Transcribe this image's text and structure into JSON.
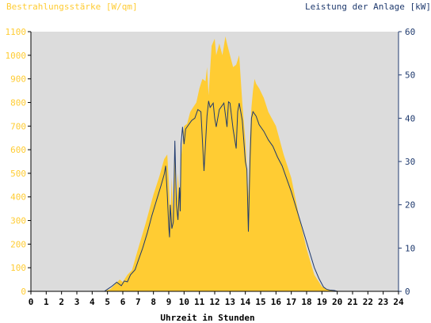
{
  "chart_data": {
    "type": "area",
    "left_axis_title": "Bestrahlungsstärke [W/qm]",
    "right_axis_title": "Leistung der Anlage [kW]",
    "xlabel": "Uhrzeit in Stunden",
    "xlim": [
      0,
      24
    ],
    "ylim_left": [
      0,
      1100
    ],
    "ylim_right": [
      0,
      60
    ],
    "x_ticks": [
      "0",
      "1",
      "2",
      "3",
      "4",
      "5",
      "6",
      "7",
      "8",
      "9",
      "10",
      "11",
      "12",
      "13",
      "14",
      "15",
      "16",
      "17",
      "18",
      "19",
      "20",
      "21",
      "22",
      "23",
      "24"
    ],
    "y_ticks_left": [
      "0",
      "100",
      "200",
      "300",
      "400",
      "500",
      "600",
      "700",
      "800",
      "900",
      "1000",
      "1100"
    ],
    "y_ticks_right": [
      "0",
      "10",
      "20",
      "30",
      "40",
      "50",
      "60"
    ],
    "grid": false,
    "colors": {
      "plot_background": "#dcdcdc",
      "irradiance_fill": "#ffcc33",
      "power_line": "#1f3a6e",
      "left_axis_text": "#ffcc33",
      "right_axis_text": "#1f3a6e",
      "x_axis_text": "#000000"
    },
    "series": [
      {
        "axis": "left",
        "style": "area",
        "x": [
          0,
          4.8,
          5.2,
          5.5,
          5.8,
          6.0,
          6.3,
          6.6,
          7.0,
          7.5,
          8.0,
          8.4,
          8.7,
          8.9,
          9.0,
          9.1,
          9.2,
          9.3,
          9.4,
          9.5,
          9.6,
          9.7,
          9.8,
          10.0,
          10.2,
          10.4,
          10.6,
          10.8,
          11.0,
          11.2,
          11.4,
          11.5,
          11.6,
          11.8,
          12.0,
          12.1,
          12.3,
          12.5,
          12.7,
          12.8,
          13.0,
          13.2,
          13.4,
          13.6,
          13.8,
          14.0,
          14.2,
          14.3,
          14.4,
          14.5,
          14.6,
          14.7,
          14.9,
          15.2,
          15.5,
          16.0,
          16.5,
          17.0,
          17.5,
          18.0,
          18.5,
          19.0,
          19.3,
          19.6,
          20.0,
          20.3,
          24
        ],
        "values": [
          0,
          0,
          10,
          30,
          50,
          40,
          70,
          90,
          180,
          290,
          410,
          490,
          560,
          580,
          470,
          320,
          480,
          300,
          590,
          360,
          500,
          380,
          560,
          700,
          710,
          760,
          780,
          800,
          860,
          900,
          890,
          950,
          830,
          1040,
          1070,
          1000,
          1050,
          1000,
          1080,
          1050,
          1000,
          950,
          960,
          1000,
          800,
          640,
          400,
          650,
          780,
          850,
          900,
          880,
          860,
          820,
          760,
          700,
          580,
          480,
          320,
          180,
          70,
          20,
          10,
          5,
          2,
          0,
          0
        ]
      },
      {
        "axis": "right",
        "style": "line",
        "x": [
          0,
          4.8,
          5.0,
          5.3,
          5.6,
          5.9,
          6.1,
          6.3,
          6.5,
          6.8,
          7.0,
          7.3,
          7.6,
          7.9,
          8.2,
          8.5,
          8.7,
          8.8,
          8.9,
          9.0,
          9.05,
          9.1,
          9.2,
          9.3,
          9.4,
          9.5,
          9.6,
          9.7,
          9.75,
          9.8,
          9.9,
          10.0,
          10.1,
          10.3,
          10.5,
          10.7,
          10.9,
          11.1,
          11.3,
          11.5,
          11.6,
          11.7,
          11.9,
          12.0,
          12.1,
          12.3,
          12.5,
          12.6,
          12.8,
          12.9,
          13.0,
          13.2,
          13.4,
          13.5,
          13.6,
          13.8,
          14.0,
          14.1,
          14.2,
          14.3,
          14.4,
          14.5,
          14.7,
          14.9,
          15.2,
          15.5,
          15.8,
          16.1,
          16.4,
          16.7,
          17.0,
          17.3,
          17.6,
          17.9,
          18.2,
          18.5,
          18.8,
          19.1,
          19.3,
          19.5,
          19.8,
          20.0,
          24
        ],
        "values": [
          0,
          0,
          0.5,
          1.2,
          2.1,
          1.3,
          2.4,
          2.2,
          3.8,
          5.0,
          7.0,
          10.0,
          13.5,
          17.5,
          21.0,
          24.5,
          27.0,
          29.0,
          22.5,
          15.0,
          12.5,
          20.0,
          14.5,
          16.0,
          34.8,
          20.0,
          16.5,
          24.0,
          18.5,
          34.0,
          38.0,
          34.0,
          37.5,
          38.5,
          39.5,
          40.0,
          42.0,
          41.5,
          27.8,
          40.5,
          44.0,
          42.5,
          43.5,
          40.0,
          38.0,
          42.0,
          43.0,
          43.5,
          38.0,
          43.8,
          43.5,
          37.5,
          33.0,
          41.5,
          43.5,
          39.5,
          30.0,
          28.2,
          13.8,
          30.0,
          40.0,
          41.5,
          40.5,
          38.5,
          37.0,
          35.0,
          33.5,
          31.0,
          29.0,
          26.0,
          23.0,
          19.5,
          16.0,
          12.5,
          9.0,
          5.5,
          3.0,
          1.0,
          0.5,
          0.3,
          0.2,
          0,
          0
        ]
      }
    ]
  }
}
